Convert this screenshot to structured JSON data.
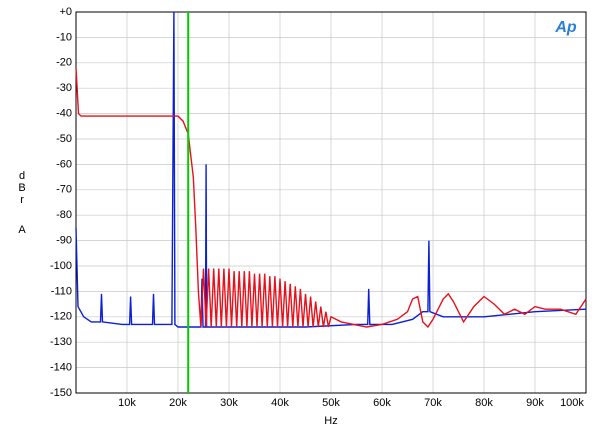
{
  "chart_data": {
    "type": "line",
    "logo": "Ap",
    "ylabel": "dBr",
    "ylabel_unit": "A",
    "xlabel": "Hz",
    "xlim": [
      0,
      100000
    ],
    "ylim": [
      -150,
      0
    ],
    "grid": true,
    "xticks": [
      {
        "value": 10000,
        "label": "10k"
      },
      {
        "value": 20000,
        "label": "20k"
      },
      {
        "value": 30000,
        "label": "30k"
      },
      {
        "value": 40000,
        "label": "40k"
      },
      {
        "value": 50000,
        "label": "50k"
      },
      {
        "value": 60000,
        "label": "60k"
      },
      {
        "value": 70000,
        "label": "70k"
      },
      {
        "value": 80000,
        "label": "80k"
      },
      {
        "value": 90000,
        "label": "90k"
      },
      {
        "value": 100000,
        "label": "100k"
      }
    ],
    "yticks": [
      {
        "value": 0,
        "label": "+0"
      },
      -10,
      -20,
      -30,
      -40,
      -50,
      -60,
      -70,
      -80,
      -90,
      -100,
      -110,
      -120,
      -130,
      -140,
      -150
    ],
    "markers": [
      {
        "x": 22000,
        "color": "#00cc00"
      }
    ],
    "series": [
      {
        "color": "#0a1fd6",
        "x": [
          0,
          400,
          1500,
          3000,
          4800,
          5000,
          5200,
          9000,
          10500,
          10700,
          10900,
          14000,
          15000,
          15200,
          15400,
          18800,
          19200,
          19400,
          20000,
          24500,
          24700,
          24900,
          25400,
          25500,
          25600,
          35000,
          45000,
          55000,
          57200,
          57400,
          57600,
          62000,
          66000,
          68000,
          69000,
          69200,
          69400,
          72000,
          80000,
          90000,
          100000
        ],
        "values": [
          -85,
          -116,
          -120,
          -122,
          -122,
          -111,
          -122,
          -123,
          -123,
          -112,
          -123,
          -123,
          -123,
          -111,
          -123,
          -123,
          0,
          -123,
          -124,
          -124,
          -105,
          -124,
          -124,
          -60,
          -124,
          -124,
          -124,
          -123,
          -123,
          -109,
          -123,
          -123,
          -121,
          -118,
          -118,
          -90,
          -118,
          -120,
          -120,
          -118,
          -117
        ]
      },
      {
        "color": "#e8101a",
        "x": [
          0,
          500,
          1000,
          5000,
          10000,
          15000,
          20000,
          21000,
          22000,
          23000,
          23500,
          24000,
          24500,
          25000,
          25500,
          26000,
          26500,
          27000,
          27500,
          28000,
          28500,
          29000,
          29500,
          30000,
          30500,
          31000,
          31500,
          32000,
          32500,
          33000,
          33500,
          34000,
          34500,
          35000,
          35500,
          36000,
          36500,
          37000,
          37500,
          38000,
          38500,
          39000,
          39500,
          40000,
          40500,
          41000,
          41500,
          42000,
          42500,
          43000,
          43500,
          44000,
          44500,
          45000,
          45500,
          46000,
          46500,
          47000,
          47500,
          48000,
          48500,
          49000,
          49500,
          50000,
          52000,
          57000,
          60000,
          63000,
          65000,
          66000,
          67000,
          68000,
          69000,
          70000,
          72000,
          73000,
          74000,
          76000,
          78000,
          80000,
          82000,
          84000,
          86000,
          88000,
          90000,
          92000,
          95000,
          98000,
          100000
        ],
        "values": [
          -22,
          -40,
          -41,
          -41,
          -41,
          -41,
          -41,
          -43,
          -48,
          -65,
          -85,
          -110,
          -124,
          -101,
          -124,
          -101,
          -124,
          -101,
          -124,
          -101,
          -124,
          -101,
          -124,
          -101,
          -124,
          -102,
          -124,
          -102,
          -124,
          -102,
          -124,
          -102,
          -124,
          -103,
          -124,
          -103,
          -124,
          -103,
          -124,
          -104,
          -124,
          -104,
          -124,
          -105,
          -124,
          -106,
          -124,
          -107,
          -124,
          -108,
          -124,
          -109,
          -124,
          -111,
          -124,
          -112,
          -124,
          -114,
          -124,
          -116,
          -124,
          -118,
          -124,
          -120,
          -122,
          -124,
          -123,
          -121,
          -118,
          -113,
          -112,
          -122,
          -124,
          -121,
          -113,
          -111,
          -114,
          -122,
          -116,
          -112,
          -115,
          -119,
          -117,
          -119,
          -116,
          -117,
          -117,
          -119,
          -113
        ]
      }
    ]
  }
}
